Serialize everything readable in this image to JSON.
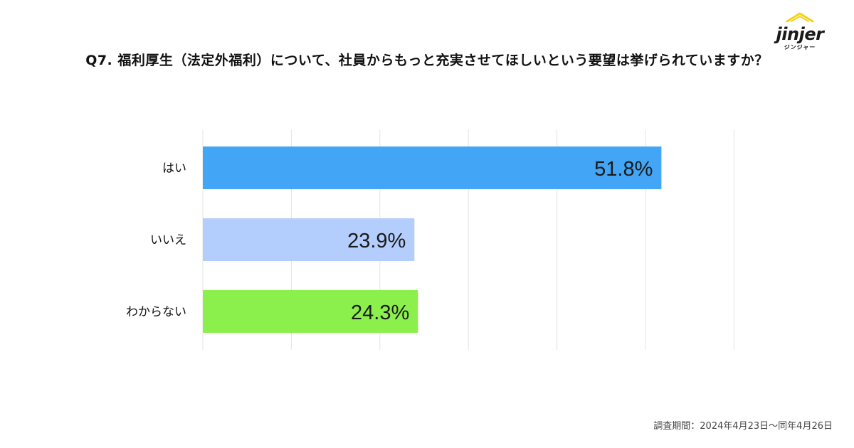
{
  "title": "Q7. 福利厚生（法定外福利）について、社員からもっと充実させてほしいという要望は挙げられていますか？",
  "logo": {
    "word": "jinjer",
    "sub": "ジンジャー"
  },
  "footnote": "調査期間：2024年4月23日〜同年4月26日",
  "chart_data": {
    "type": "bar",
    "orientation": "horizontal",
    "title": "Q7. 福利厚生（法定外福利）について、社員からもっと充実させてほしいという要望は挙げられていますか？",
    "categories": [
      "はい",
      "いいえ",
      "わからない"
    ],
    "values": [
      51.8,
      23.9,
      24.3
    ],
    "labels": [
      "51.8%",
      "23.9%",
      "24.3%"
    ],
    "colors": [
      "#42a5f5",
      "#b3cdfc",
      "#8cf04c"
    ],
    "xlim": [
      0,
      60
    ],
    "grid": true,
    "legend": "none"
  }
}
